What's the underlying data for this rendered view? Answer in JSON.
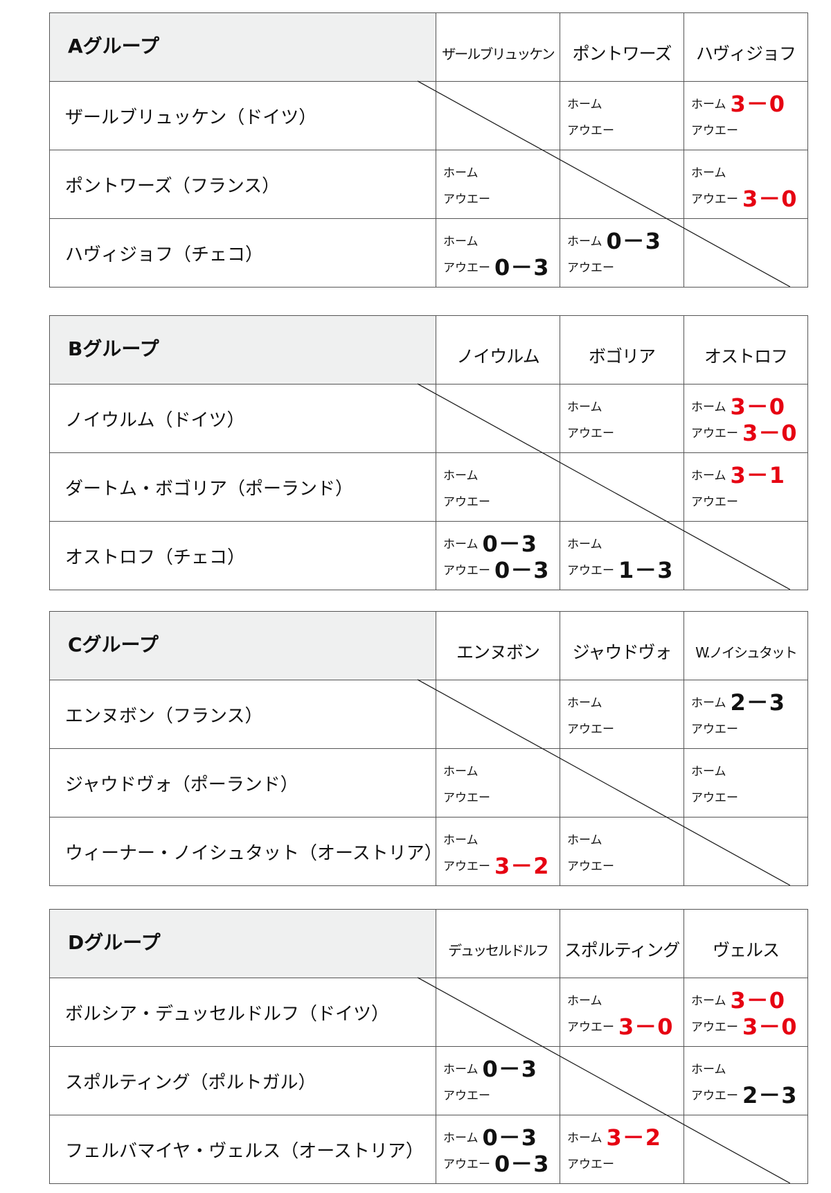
{
  "labels": {
    "home": "ホーム",
    "away": "アウエー"
  },
  "colors": {
    "win": "#e60012",
    "loss": "#111111",
    "header_bg": "#eff0f0"
  },
  "groups": [
    {
      "title": "Aグループ",
      "columns": [
        "ザールブリュッケン",
        "ポントワーズ",
        "ハヴィジョフ"
      ],
      "rows": [
        {
          "name": "ザールブリュッケン（ドイツ）",
          "cells": [
            null,
            {
              "home": "",
              "away": ""
            },
            {
              "home": "3－0",
              "home_color": "red",
              "away": ""
            }
          ]
        },
        {
          "name": "ポントワーズ（フランス）",
          "cells": [
            {
              "home": "",
              "away": ""
            },
            null,
            {
              "home": "",
              "away": "3－0",
              "away_color": "red"
            }
          ]
        },
        {
          "name": "ハヴィジョフ（チェコ）",
          "cells": [
            {
              "home": "",
              "away": "0－3",
              "away_color": "black"
            },
            {
              "home": "0－3",
              "home_color": "black",
              "away": ""
            },
            null
          ]
        }
      ]
    },
    {
      "title": "Bグループ",
      "columns": [
        "ノイウルム",
        "ボゴリア",
        "オストロフ"
      ],
      "rows": [
        {
          "name": "ノイウルム（ドイツ）",
          "cells": [
            null,
            {
              "home": "",
              "away": ""
            },
            {
              "home": "3－0",
              "home_color": "red",
              "away": "3－0",
              "away_color": "red"
            }
          ]
        },
        {
          "name": "ダートム・ボゴリア（ポーランド）",
          "cells": [
            {
              "home": "",
              "away": ""
            },
            null,
            {
              "home": "3－1",
              "home_color": "red",
              "away": ""
            }
          ]
        },
        {
          "name": "オストロフ（チェコ）",
          "cells": [
            {
              "home": "0－3",
              "home_color": "black",
              "away": "0－3",
              "away_color": "black"
            },
            {
              "home": "",
              "away": "1－3",
              "away_color": "black"
            },
            null
          ]
        }
      ]
    },
    {
      "title": "Cグループ",
      "columns": [
        "エンヌボン",
        "ジャウドヴォ",
        "W.ノイシュタット"
      ],
      "rows": [
        {
          "name": "エンヌボン（フランス）",
          "cells": [
            null,
            {
              "home": "",
              "away": ""
            },
            {
              "home": "2－3",
              "home_color": "black",
              "away": ""
            }
          ]
        },
        {
          "name": "ジャウドヴォ（ポーランド）",
          "cells": [
            {
              "home": "",
              "away": ""
            },
            null,
            {
              "home": "",
              "away": ""
            }
          ]
        },
        {
          "name": "ウィーナー・ノイシュタット（オーストリア）",
          "cells": [
            {
              "home": "",
              "away": "3－2",
              "away_color": "red"
            },
            {
              "home": "",
              "away": ""
            },
            null
          ]
        }
      ]
    },
    {
      "title": "Dグループ",
      "columns": [
        "デュッセルドルフ",
        "スポルティング",
        "ヴェルス"
      ],
      "rows": [
        {
          "name": "ボルシア・デュッセルドルフ（ドイツ）",
          "cells": [
            null,
            {
              "home": "",
              "away": "3－0",
              "away_color": "red"
            },
            {
              "home": "3－0",
              "home_color": "red",
              "away": "3－0",
              "away_color": "red"
            }
          ]
        },
        {
          "name": "スポルティング（ポルトガル）",
          "cells": [
            {
              "home": "0－3",
              "home_color": "black",
              "away": ""
            },
            null,
            {
              "home": "",
              "away": "2－3",
              "away_color": "black"
            }
          ]
        },
        {
          "name": "フェルバマイヤ・ヴェルス（オーストリア）",
          "cells": [
            {
              "home": "0－3",
              "home_color": "black",
              "away": "0－3",
              "away_color": "black"
            },
            {
              "home": "3－2",
              "home_color": "red",
              "away": ""
            },
            null
          ]
        }
      ]
    }
  ]
}
